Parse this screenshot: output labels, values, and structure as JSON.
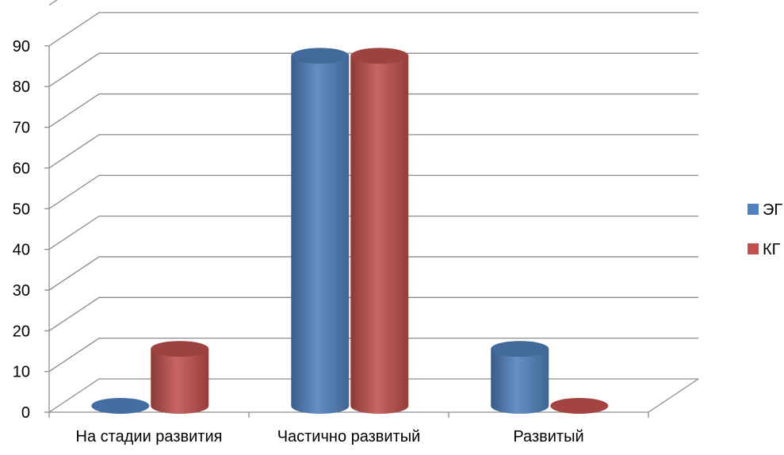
{
  "chart_data": {
    "type": "bar",
    "categories": [
      "На стадии развития",
      "Частично развитый",
      "Развитый"
    ],
    "series": [
      {
        "name": "ЭГ",
        "color": "#4F81BD",
        "values": [
          0,
          86,
          14
        ]
      },
      {
        "name": "КГ",
        "color": "#C0504D",
        "values": [
          14,
          86,
          0
        ]
      }
    ],
    "y_ticks": [
      "0",
      "10",
      "20",
      "30",
      "40",
      "50",
      "60",
      "70",
      "80",
      "90"
    ],
    "ylim": [
      0,
      100
    ],
    "grid": true,
    "legend": "right",
    "style": "3d-cylinder"
  }
}
